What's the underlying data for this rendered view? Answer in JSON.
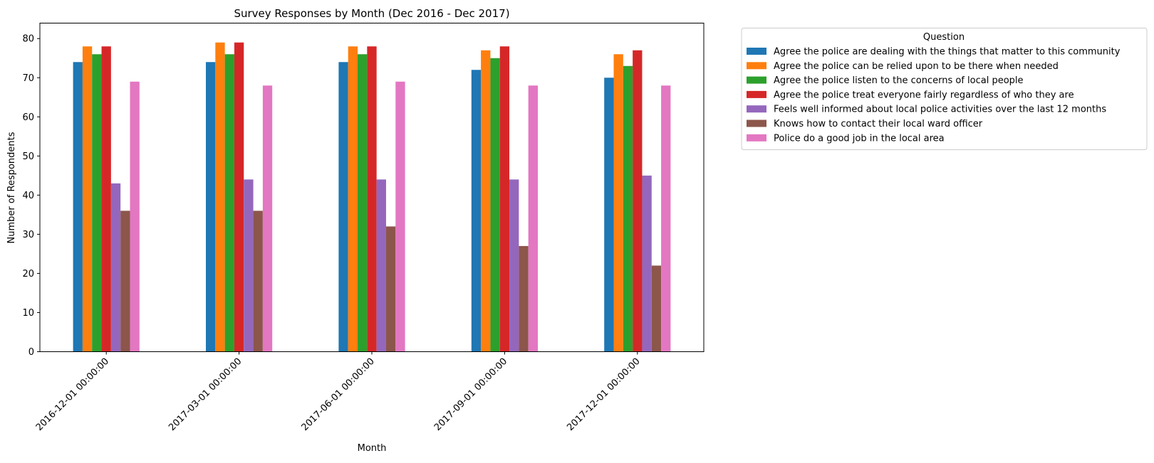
{
  "chart_data": {
    "type": "bar",
    "title": "Survey Responses by Month (Dec 2016 - Dec 2017)",
    "xlabel": "Month",
    "ylabel": "Number of Respondents",
    "ylim": [
      0,
      83.95
    ],
    "yticks": [
      0,
      10,
      20,
      30,
      40,
      50,
      60,
      70,
      80
    ],
    "grid": false,
    "legend_title": "Question",
    "legend_position": "outside-top-right",
    "categories": [
      "2016-12-01 00:00:00",
      "2017-03-01 00:00:00",
      "2017-06-01 00:00:00",
      "2017-09-01 00:00:00",
      "2017-12-01 00:00:00"
    ],
    "series": [
      {
        "name": "Agree the police are dealing with the things that matter to this community",
        "color": "#1f77b4",
        "values": [
          74,
          74,
          74,
          72,
          70
        ]
      },
      {
        "name": "Agree the police can be relied upon to be there when needed",
        "color": "#ff7f0e",
        "values": [
          78,
          79,
          78,
          77,
          76
        ]
      },
      {
        "name": "Agree the police listen to the concerns of local people",
        "color": "#2ca02c",
        "values": [
          76,
          76,
          76,
          75,
          73
        ]
      },
      {
        "name": "Agree the police treat everyone fairly regardless of who they are",
        "color": "#d62728",
        "values": [
          78,
          79,
          78,
          78,
          77
        ]
      },
      {
        "name": "Feels well informed about local police activities over the last 12 months",
        "color": "#9467bd",
        "values": [
          43,
          44,
          44,
          44,
          45
        ]
      },
      {
        "name": "Knows how to contact their local ward officer",
        "color": "#8c564b",
        "values": [
          36,
          36,
          32,
          27,
          22
        ]
      },
      {
        "name": "Police do a good job in the local area",
        "color": "#e377c2",
        "values": [
          69,
          68,
          69,
          68,
          68
        ]
      }
    ]
  }
}
